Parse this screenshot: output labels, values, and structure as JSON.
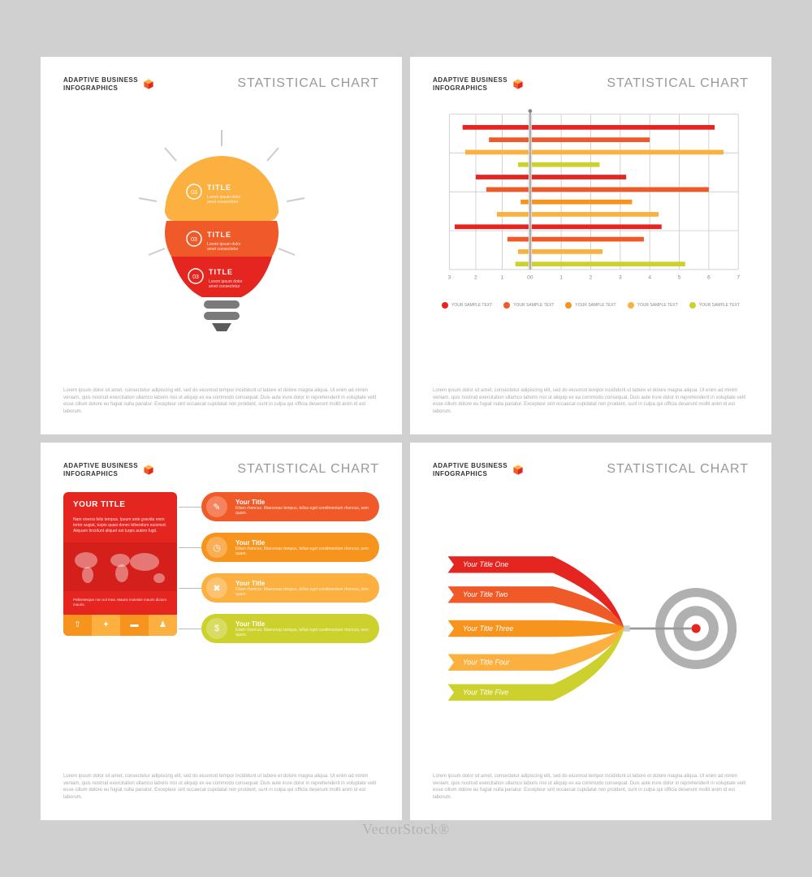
{
  "brand": {
    "line1": "ADAPTIVE BUSINESS",
    "line2": "INFOGRAPHICS"
  },
  "title": "STATISTICAL CHART",
  "colors": {
    "red": "#e52520",
    "orangeRed": "#f05a28",
    "orange": "#f7941e",
    "yellow": "#fbb040",
    "yellowGreen": "#cdd12e",
    "gray": "#808080",
    "lightGray": "#cccccc",
    "darkGray": "#5c5c5c"
  },
  "footer": "Lorem ipsum dolor sit amet, consectetur adipiscing elit, sed do eiusmod tempor incididunt ut labore et dolore magna aliqua. Ut enim ad minim veniam, quis nostrud exercitation ullamco laboris nisi ut aliquip ex ea commodo consequat. Duis aute irure dolor in reprehenderit in voluptate velit esse cillum dolore eu fugiat nulla pariatur. Excepteur sint occaecat cupidatat non proident, sunt in culpa qui officia deserunt mollit anim id est laborum.",
  "panel1": {
    "type": "infographic",
    "segments": [
      {
        "num": "03",
        "title": "TITLE",
        "desc": "Lorem ipsum dolor amet consectetur",
        "color": "#fbb040"
      },
      {
        "num": "03",
        "title": "TITLE",
        "desc": "Lorem ipsum dolor amet consectetur",
        "color": "#f05a28"
      },
      {
        "num": "03",
        "title": "TITLE",
        "desc": "Lorem ipsum dolor amet consectetur",
        "color": "#e52520"
      }
    ]
  },
  "panel2": {
    "type": "bar",
    "grid_color": "#d0d0d0",
    "axis_labels_left": [
      "3",
      "2",
      "1",
      "0"
    ],
    "axis_labels_right": [
      "0",
      "1",
      "2",
      "3",
      "4",
      "5",
      "6",
      "7"
    ],
    "bars": [
      {
        "l": 2.5,
        "r": 6.2,
        "c": "#e52520"
      },
      {
        "l": 1.5,
        "r": 4.0,
        "c": "#f05a28"
      },
      {
        "l": 2.4,
        "r": 6.5,
        "c": "#fbb040"
      },
      {
        "l": 0.4,
        "r": 2.3,
        "c": "#cdd12e"
      },
      {
        "l": 2.0,
        "r": 3.2,
        "c": "#e52520"
      },
      {
        "l": 1.6,
        "r": 6.0,
        "c": "#f05a28"
      },
      {
        "l": 0.3,
        "r": 3.4,
        "c": "#f7941e"
      },
      {
        "l": 1.2,
        "r": 4.3,
        "c": "#fbb040"
      },
      {
        "l": 2.8,
        "r": 4.4,
        "c": "#e52520"
      },
      {
        "l": 0.8,
        "r": 3.8,
        "c": "#f05a28"
      },
      {
        "l": 0.4,
        "r": 2.4,
        "c": "#fbb040"
      },
      {
        "l": 0.5,
        "r": 5.2,
        "c": "#cdd12e"
      }
    ],
    "legend": [
      {
        "c": "#e52520",
        "t": "YOUR SAMPLE TEXT"
      },
      {
        "c": "#f05a28",
        "t": "YOUR SAMPLE TEXT"
      },
      {
        "c": "#f7941e",
        "t": "YOUR SAMPLE TEXT"
      },
      {
        "c": "#fbb040",
        "t": "YOUR SAMPLE TEXT"
      },
      {
        "c": "#cdd12e",
        "t": "YOUR SAMPLE TEXT"
      }
    ]
  },
  "panel3": {
    "type": "infographic",
    "card": {
      "title": "YOUR TITLE",
      "body": "Nam viverra felis tempus. Ipsum ante gravida enim tortor augiat, turpis quasi donec bibendum euismod. Aliquam tincidunt aliquet est turpis autem fugit.",
      "sub": "Pellentesque non sol mea. Mauris molestie mauris dictum mauris.",
      "icon_colors": [
        "#f7941e",
        "#fbb040",
        "#f7941e",
        "#fbb040"
      ]
    },
    "pills": [
      {
        "color": "#f05a28",
        "icon": "✎",
        "title": "Your Title",
        "desc": "Etiam rhoncus. Maecenas tempus, tellus eget condimentum rhoncus, sem quam."
      },
      {
        "color": "#f7941e",
        "icon": "◷",
        "title": "Your Title",
        "desc": "Etiam rhoncus. Maecenas tempus, tellus eget condimentum rhoncus, sem quam."
      },
      {
        "color": "#fbb040",
        "icon": "✖",
        "title": "Your Title",
        "desc": "Etiam rhoncus. Maecenas tempus, tellus eget condimentum rhoncus, sem quam."
      },
      {
        "color": "#cdd12e",
        "icon": "$",
        "title": "Your Title",
        "desc": "Etiam rhoncus. Maecenas tempus, tellus eget condimentum rhoncus, sem quam."
      }
    ]
  },
  "panel4": {
    "type": "infographic",
    "ribbons": [
      {
        "label": "Your Title One",
        "color": "#e52520"
      },
      {
        "label": "Your Title Two",
        "color": "#f05a28"
      },
      {
        "label": "Your Title Three",
        "color": "#f7941e"
      },
      {
        "label": "Your Title Four",
        "color": "#fbb040"
      },
      {
        "label": "Your Title Five",
        "color": "#cdd12e"
      }
    ],
    "target_colors": {
      "outer": "#b0b0b0",
      "mid": "#ffffff",
      "inner": "#b0b0b0",
      "center": "#ffffff",
      "bull": "#e52520"
    }
  },
  "watermark": "VectorStock®"
}
